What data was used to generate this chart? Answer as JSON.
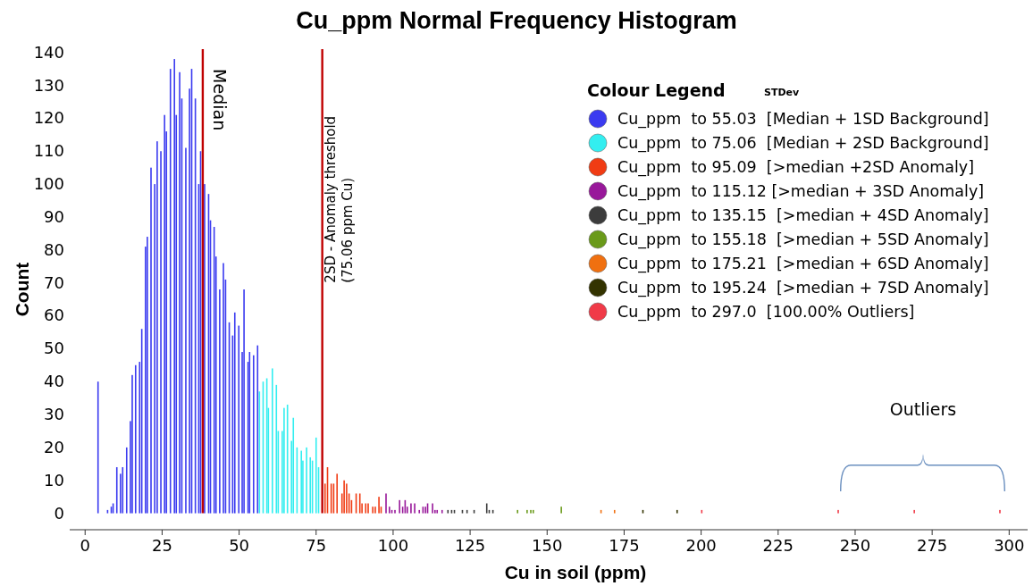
{
  "chart_data": {
    "type": "bar",
    "title": "Cu_ppm Normal Frequency Histogram",
    "xlabel": "Cu in soil (ppm)",
    "ylabel": "Count",
    "legend_title": "Colour Legend",
    "legend": "top right",
    "xlim": [
      -5,
      306
    ],
    "xticks": [
      0,
      25,
      50,
      75,
      100,
      125,
      150,
      175,
      200,
      225,
      250,
      275,
      300
    ],
    "ylim": [
      -5,
      141
    ],
    "yticks": [
      0,
      10,
      20,
      30,
      40,
      50,
      60,
      70,
      80,
      90,
      100,
      110,
      120,
      130,
      140
    ],
    "annotations": [
      "STDev",
      "Outliers"
    ],
    "ref_lines": [
      {
        "axis": "x",
        "value": 38.2,
        "label": "Median",
        "color": "#c00000"
      },
      {
        "axis": "x",
        "value": 77,
        "label": "2SD - Anomaly threshold\n(75.06 ppm Cu)",
        "color": "#c00000"
      }
    ],
    "series": [
      {
        "name": "Cu_ppm  to 55.03  [Median + 1SD Background]",
        "color": "#3b3bf0",
        "x": [
          4.2,
          7.3,
          8.5,
          9.1,
          10.3,
          11.5,
          12.2,
          13.5,
          14.7,
          15.3,
          16.4,
          17.7,
          18.4,
          19.6,
          20.2,
          21.4,
          22.6,
          23.4,
          24.6,
          25.8,
          26.4,
          27.7,
          29.0,
          29.6,
          30.7,
          31.4,
          32.7,
          33.9,
          34.6,
          35.8,
          36.9,
          37.5,
          38.8,
          40.1,
          40.7,
          41.9,
          42.5,
          43.7,
          44.9,
          45.6,
          46.8,
          47.9,
          48.6,
          49.9,
          51.0,
          51.6,
          52.9,
          53.4,
          54.7,
          56.0
        ],
        "values": [
          40,
          1,
          2,
          3,
          14,
          12,
          14,
          20,
          28,
          42,
          45,
          46,
          56,
          81,
          84,
          105,
          100,
          113,
          110,
          121,
          116,
          135,
          138,
          121,
          134,
          126,
          111,
          129,
          135,
          126,
          100,
          110,
          100,
          97,
          89,
          87,
          78,
          68,
          76,
          71,
          58,
          54,
          61,
          57,
          49,
          68,
          46,
          49,
          48,
          51
        ]
      },
      {
        "name": "Cu_ppm  to 75.06  [Median + 2SD Background]",
        "color": "#33eef0",
        "x": [
          56.6,
          57.8,
          59.0,
          59.5,
          60.8,
          62.1,
          62.7,
          64.0,
          64.6,
          65.7,
          67.0,
          67.6,
          68.8,
          70.2,
          70.7,
          71.9,
          73.1,
          73.8,
          75.0,
          75.8
        ],
        "values": [
          37,
          40,
          41,
          32,
          44,
          39,
          25,
          25,
          32,
          33,
          22,
          29,
          20,
          19,
          16,
          20,
          17,
          16,
          23,
          14
        ]
      },
      {
        "name": "Cu_ppm  to 95.09  [>median +2SD Anomaly]",
        "color": "#f03c14",
        "x": [
          77.9,
          78.7,
          79.9,
          80.7,
          81.8,
          83.4,
          84.1,
          84.9,
          85.7,
          86.5,
          88.0,
          89.2,
          89.9,
          91.1,
          91.9,
          93.4,
          94.2,
          95.4,
          96.1
        ],
        "values": [
          9,
          14,
          9,
          9,
          12,
          6,
          10,
          9,
          6,
          4,
          6,
          6,
          3,
          3,
          3,
          2,
          2,
          5,
          2
        ]
      },
      {
        "name": "Cu_ppm  to 115.12 [>median + 3SD Anomaly]",
        "color": "#98189a",
        "x": [
          97.7,
          98.8,
          99.6,
          100.6,
          102.1,
          103.1,
          103.9,
          104.6,
          105.8,
          107.0,
          108.5,
          109.7,
          110.5,
          111.2,
          112.8,
          113.6,
          114.3,
          115.9
        ],
        "values": [
          6,
          2,
          1,
          1,
          4,
          2,
          4,
          2,
          3,
          3,
          1,
          2,
          2,
          3,
          3,
          1,
          1,
          1
        ]
      },
      {
        "name": "Cu_ppm  to 135.15  [>median + 4SD Anomaly]",
        "color": "#3c3c3c",
        "x": [
          117.8,
          119.0,
          119.9,
          122.5,
          124.0,
          126.3,
          130.4,
          131.2,
          132.4
        ],
        "values": [
          1,
          1,
          1,
          1,
          1,
          1,
          3,
          1,
          1
        ]
      },
      {
        "name": "Cu_ppm  to 155.18  [>median + 5SD Anomaly]",
        "color": "#6a9a1a",
        "x": [
          140.4,
          143.5,
          144.7,
          145.5,
          154.6
        ],
        "values": [
          1,
          1,
          1,
          1,
          2
        ]
      },
      {
        "name": "Cu_ppm  to 175.21  [>median + 6SD Anomaly]",
        "color": "#f07010",
        "x": [
          167.5,
          171.9
        ],
        "values": [
          1,
          1
        ]
      },
      {
        "name": "Cu_ppm  to 195.24  [>median + 7SD Anomaly]",
        "color": "#333300",
        "x": [
          181.1,
          192.2
        ],
        "values": [
          1,
          1
        ]
      },
      {
        "name": "Cu_ppm  to 297.0  [100.00% Outliers]",
        "color": "#f03a48",
        "x": [
          200.2,
          244.5,
          269.2,
          297
        ],
        "values": [
          1,
          1,
          1,
          1
        ]
      }
    ]
  }
}
